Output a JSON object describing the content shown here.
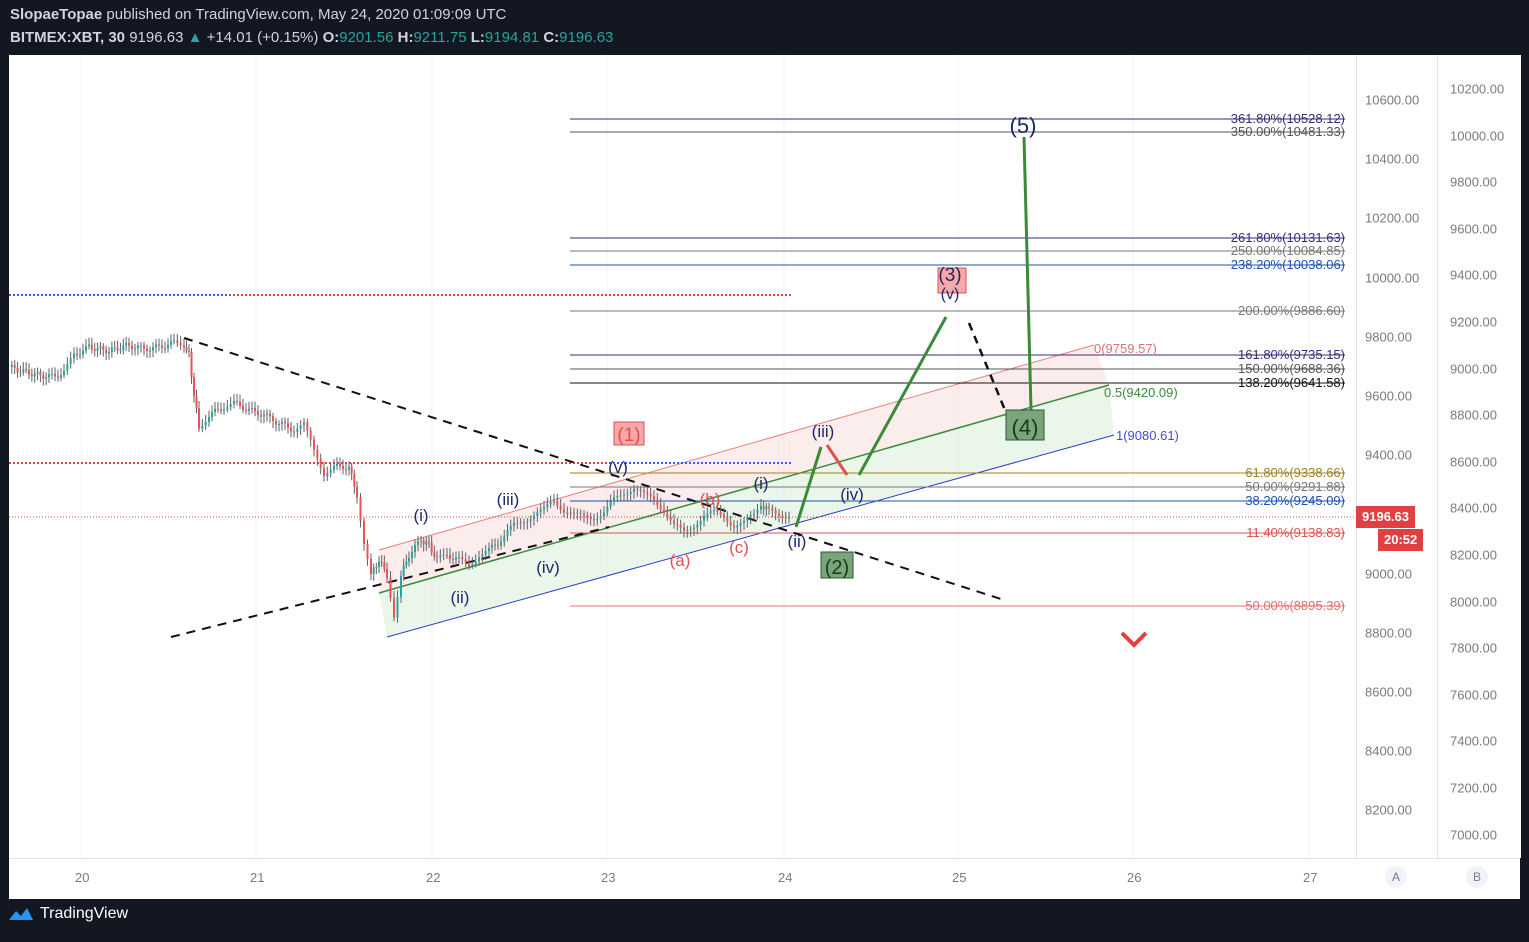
{
  "header": {
    "publisher": "SlopaeTopae",
    "published_line": "published on TradingView.com, May 24, 2020 01:09:09 UTC",
    "symbol": "BITMEX:XBT, 30",
    "last": "9196.63",
    "change": "+14.01 (+0.15%)",
    "open_label": "O:",
    "open": "9201.56",
    "high_label": "H:",
    "high": "9211.75",
    "low_label": "L:",
    "low": "9194.81",
    "close_label": "C:",
    "close": "9196.63"
  },
  "price_tag": {
    "price": "9196.63",
    "countdown": "20:52"
  },
  "scale_a": [
    "10600.00",
    "10400.00",
    "10200.00",
    "10000.00",
    "9800.00",
    "9600.00",
    "9400.00",
    "9200.00",
    "9000.00",
    "8800.00",
    "8600.00",
    "8400.00",
    "8200.00"
  ],
  "scale_b": [
    "10200.00",
    "10000.00",
    "9800.00",
    "9600.00",
    "9400.00",
    "9200.00",
    "9000.00",
    "8800.00",
    "8600.00",
    "8400.00",
    "8200.00",
    "8000.00",
    "7800.00",
    "7600.00",
    "7400.00",
    "7200.00",
    "7000.00"
  ],
  "time_axis": [
    "20",
    "21",
    "22",
    "23",
    "24",
    "25",
    "26",
    "27"
  ],
  "scale_buttons": [
    "A",
    "B"
  ],
  "brand": "TradingView",
  "fib_levels": [
    {
      "label": "361.80%(10528.12)",
      "color": "#3b2a7a"
    },
    {
      "label": "350.00%(10481.33)",
      "color": "#555"
    },
    {
      "label": "261.80%(10131.63)",
      "color": "#3b2a7a"
    },
    {
      "label": "250.00%(10084.85)",
      "color": "#777"
    },
    {
      "label": "238.20%(10038.06)",
      "color": "#1e50b4"
    },
    {
      "label": "200.00%(9886.60)",
      "color": "#777"
    },
    {
      "label": "161.80%(9735.15)",
      "color": "#3b2a7a"
    },
    {
      "label": "150.00%(9688.36)",
      "color": "#555"
    },
    {
      "label": "138.20%(9641.58)",
      "color": "#111"
    },
    {
      "label": "61.80%(9338.66)",
      "color": "#a08020"
    },
    {
      "label": "50.00%(9291.88)",
      "color": "#777"
    },
    {
      "label": "38.20%(9245.09)",
      "color": "#1e50b4"
    },
    {
      "label": "11.40%(9138.83)",
      "color": "#e05050"
    },
    {
      "label": "50.00%(8895.39)",
      "color": "#e07070"
    }
  ],
  "channel_labels": {
    "top": "0(9759.57)",
    "mid": "0.5(9420.09)",
    "bottom": "1(9080.61)"
  },
  "wave_labels": {
    "w1": "(1)",
    "w2": "(2)",
    "w3": "(3)",
    "w4": "(4)",
    "w5": "(5)",
    "i_a": "(i)",
    "ii_a": "(ii)",
    "iii_a": "(iii)",
    "iv_a": "(iv)",
    "v_a": "(v)",
    "a": "(a)",
    "b": "(b)",
    "c": "(c)",
    "i_b": "(i)",
    "ii_b": "(ii)",
    "iii_b": "(iii)",
    "iv_b": "(iv)",
    "v_b": "(v)"
  },
  "colors": {
    "background": "#131722",
    "up": "#26a69a",
    "down": "#ef5350",
    "wave_green": "#3a8a3a",
    "wave_red": "#e05050",
    "navy": "#1a2a6a"
  },
  "icons": {
    "chevron": "chevron-down-icon",
    "logo": "tradingview-logo"
  }
}
